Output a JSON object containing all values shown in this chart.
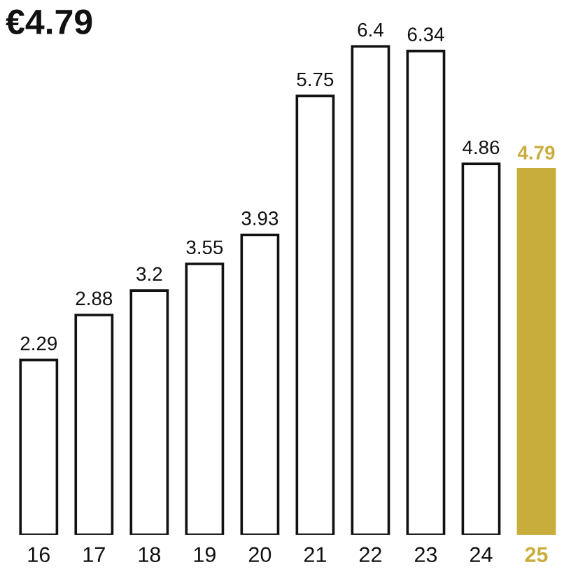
{
  "chart_data": {
    "type": "bar",
    "title": "€4.79",
    "categories": [
      "16",
      "17",
      "18",
      "19",
      "20",
      "21",
      "22",
      "23",
      "24",
      "25"
    ],
    "values": [
      2.29,
      2.88,
      3.2,
      3.55,
      3.93,
      5.75,
      6.4,
      6.34,
      4.86,
      4.79
    ],
    "colors": [
      "#ffffff",
      "#ffffff",
      "#ffffff",
      "#ffffff",
      "#ffffff",
      "#ffffff",
      "#ffffff",
      "#ffffff",
      "#ffffff",
      "#c9ad3c"
    ],
    "data_labels": true,
    "grid": false,
    "legend": false
  }
}
